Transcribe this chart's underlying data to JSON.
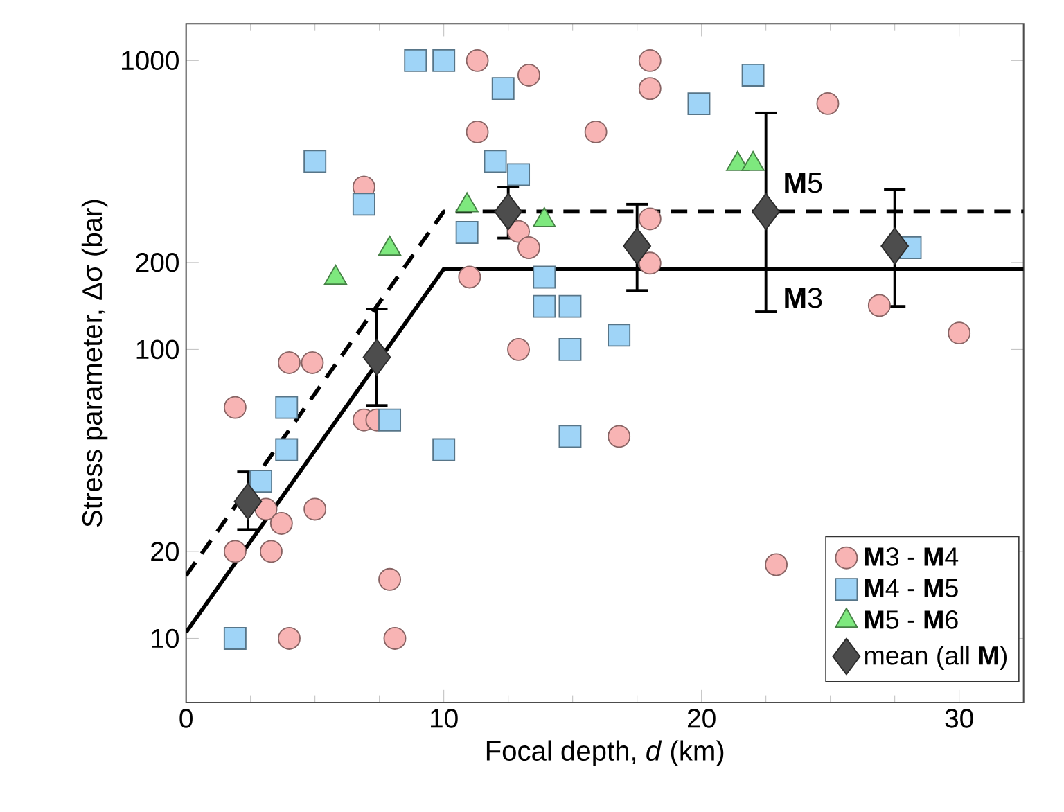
{
  "chart_data": {
    "type": "scatter",
    "xlabel": "Focal depth, *d* (km)",
    "ylabel": "Stress parameter, Δσ (bar)",
    "log": "y",
    "legend": "bottom right",
    "xlim": [
      0,
      32.5
    ],
    "ylim": [
      6,
      1340
    ],
    "xticks": [
      0,
      10,
      20,
      30
    ],
    "yticks": [
      10,
      20,
      100,
      200,
      1000
    ],
    "series": [
      {
        "name": "**M**3 - **M**4",
        "marker": "circle",
        "color": "#f8b4b4",
        "x": [
          1.9,
          1.9,
          3.1,
          3.3,
          3.7,
          4.0,
          4.0,
          4.9,
          5.0,
          6.9,
          6.9,
          7.4,
          7.9,
          8.1,
          11.0,
          11.3,
          11.3,
          12.9,
          13.3,
          12.9,
          13.3,
          15.9,
          16.8,
          18.0,
          18.0,
          18.0,
          18.0,
          22.9,
          24.9,
          26.9,
          30.0
        ],
        "values": [
          63,
          20,
          28,
          20,
          25,
          90,
          10,
          90,
          28,
          365,
          57,
          57,
          16,
          10,
          178,
          1000,
          566,
          256,
          225,
          100,
          890,
          566,
          50,
          1000,
          800,
          283,
          199,
          18,
          710,
          142,
          114
        ]
      },
      {
        "name": "**M**4 - **M**5",
        "marker": "square",
        "color": "#9fd4f7",
        "x": [
          8.9,
          10.0,
          12.3,
          5.0,
          6.9,
          12.0,
          12.9,
          10.9,
          13.9,
          13.9,
          14.9,
          14.9,
          16.8,
          22.0,
          19.9,
          28.1,
          3.9,
          3.9,
          2.9,
          7.9,
          10.0,
          14.9,
          1.9
        ],
        "values": [
          1000,
          1000,
          800,
          448,
          318,
          448,
          403,
          254,
          178,
          141,
          141,
          100,
          112,
          890,
          709,
          225,
          63,
          45,
          35,
          57,
          45,
          50,
          10
        ]
      },
      {
        "name": "**M**5 - **M**6",
        "marker": "triangle",
        "color": "#7ee87e",
        "x": [
          5.8,
          7.9,
          10.9,
          13.9,
          21.4,
          22.0
        ],
        "values": [
          177,
          223,
          315,
          280,
          438,
          438
        ]
      },
      {
        "name": "mean (all **M**)",
        "marker": "diamond",
        "color": "#4d4d4d",
        "x": [
          2.4,
          7.4,
          12.5,
          17.5,
          22.5,
          27.5
        ],
        "values": [
          29.8,
          94,
          300,
          228,
          300,
          228
        ],
        "errors": [
          [
            23.8,
            37.7
          ],
          [
            64,
            138
          ],
          [
            243,
            365
          ],
          [
            160,
            318
          ],
          [
            135,
            659
          ],
          [
            141,
            357
          ]
        ]
      },
      {
        "name": "**M**5",
        "type": "line",
        "marker": "none",
        "line_style": "dashed",
        "color": "#000000",
        "x": [
          0,
          10,
          32.5
        ],
        "values": [
          16.5,
          300,
          300
        ]
      },
      {
        "name": "**M**3",
        "type": "line",
        "marker": "none",
        "line_style": "solid",
        "color": "#000000",
        "x": [
          0,
          10,
          32.5
        ],
        "values": [
          10.5,
          190,
          190
        ]
      }
    ]
  }
}
